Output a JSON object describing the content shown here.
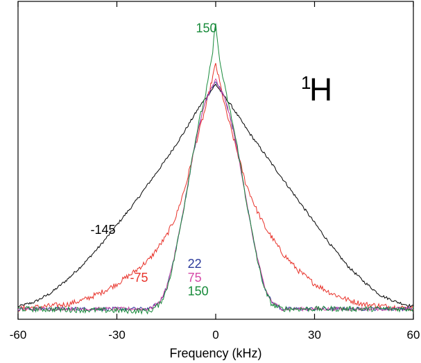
{
  "chart_data": {
    "type": "line",
    "title": "",
    "xlabel": "Frequency (kHz)",
    "ylabel": "",
    "xlim": [
      -60,
      60
    ],
    "ylim": [
      0,
      1.1
    ],
    "grid": false,
    "legend": "none",
    "x_ticks": [
      -60,
      -30,
      0,
      30,
      60
    ],
    "nucleus_label": {
      "mass": "1",
      "element": "H"
    },
    "series": [
      {
        "color": "#000000",
        "x": [
          -60,
          -55,
          -50,
          -45,
          -40,
          -35,
          -30,
          -25,
          -20,
          -15,
          -10,
          -5,
          0,
          5,
          10,
          15,
          20,
          25,
          30,
          35,
          40,
          45,
          50,
          55,
          60
        ],
        "y": [
          0.01,
          0.03,
          0.07,
          0.13,
          0.2,
          0.28,
          0.37,
          0.46,
          0.56,
          0.66,
          0.77,
          0.89,
          0.99,
          0.89,
          0.78,
          0.68,
          0.58,
          0.48,
          0.38,
          0.28,
          0.19,
          0.12,
          0.06,
          0.03,
          0.01
        ]
      },
      {
        "color": "#e8322a",
        "x": [
          -60,
          -45,
          -40,
          -35,
          -30,
          -25,
          -20,
          -15,
          -12,
          -9,
          -6,
          -3,
          0,
          3,
          6,
          9,
          12,
          15,
          20,
          25,
          30,
          35,
          40,
          45,
          60
        ],
        "y": [
          0.0,
          0.02,
          0.04,
          0.07,
          0.11,
          0.16,
          0.22,
          0.32,
          0.41,
          0.55,
          0.73,
          0.89,
          1.08,
          0.88,
          0.72,
          0.56,
          0.45,
          0.36,
          0.25,
          0.17,
          0.11,
          0.07,
          0.04,
          0.02,
          0.0
        ]
      },
      {
        "color": "#2b3a9b",
        "x": [
          -60,
          -20,
          -17,
          -15,
          -13,
          -11,
          -9,
          -7,
          -5,
          -3,
          -1,
          0,
          1,
          3,
          5,
          7,
          9,
          11,
          13,
          15,
          17,
          20,
          60
        ],
        "y": [
          0.0,
          0.0,
          0.03,
          0.09,
          0.2,
          0.34,
          0.5,
          0.67,
          0.81,
          0.92,
          0.98,
          1.0,
          0.98,
          0.92,
          0.81,
          0.67,
          0.5,
          0.34,
          0.2,
          0.09,
          0.03,
          0.0,
          0.0
        ]
      },
      {
        "color": "#d64aa8",
        "x": [
          -60,
          -20,
          -17,
          -15,
          -13,
          -11,
          -9,
          -7,
          -5,
          -3,
          -1,
          0,
          1,
          3,
          5,
          7,
          9,
          11,
          13,
          15,
          17,
          20,
          60
        ],
        "y": [
          0.0,
          0.0,
          0.03,
          0.09,
          0.2,
          0.34,
          0.5,
          0.67,
          0.81,
          0.92,
          0.98,
          1.01,
          0.98,
          0.92,
          0.81,
          0.67,
          0.5,
          0.34,
          0.2,
          0.09,
          0.03,
          0.0,
          0.0
        ]
      },
      {
        "color": "#178a3a",
        "x": [
          -60,
          -20,
          -17,
          -15,
          -13,
          -11,
          -9,
          -7,
          -5,
          -3,
          -1,
          0,
          1,
          3,
          5,
          7,
          9,
          11,
          13,
          15,
          17,
          20,
          60
        ],
        "y": [
          0.0,
          -0.01,
          0.02,
          0.08,
          0.19,
          0.34,
          0.5,
          0.68,
          0.83,
          0.95,
          1.12,
          1.27,
          1.11,
          0.96,
          0.83,
          0.68,
          0.5,
          0.34,
          0.19,
          0.08,
          0.02,
          0.0,
          0.0
        ]
      }
    ],
    "annotations": [
      {
        "text": "150",
        "color": "#178a3a",
        "x": -6,
        "y": 1.22
      },
      {
        "text": "-145",
        "color": "#000000",
        "x": -38,
        "y": 0.33
      },
      {
        "text": "-75",
        "color": "#e8322a",
        "x": -26,
        "y": 0.12
      },
      {
        "text": "22",
        "color": "#2b3a9b",
        "x": -8.5,
        "y": 0.18
      },
      {
        "text": "75",
        "color": "#d64aa8",
        "x": -8.5,
        "y": 0.12
      },
      {
        "text": "150",
        "color": "#178a3a",
        "x": -8.5,
        "y": 0.06
      }
    ]
  }
}
